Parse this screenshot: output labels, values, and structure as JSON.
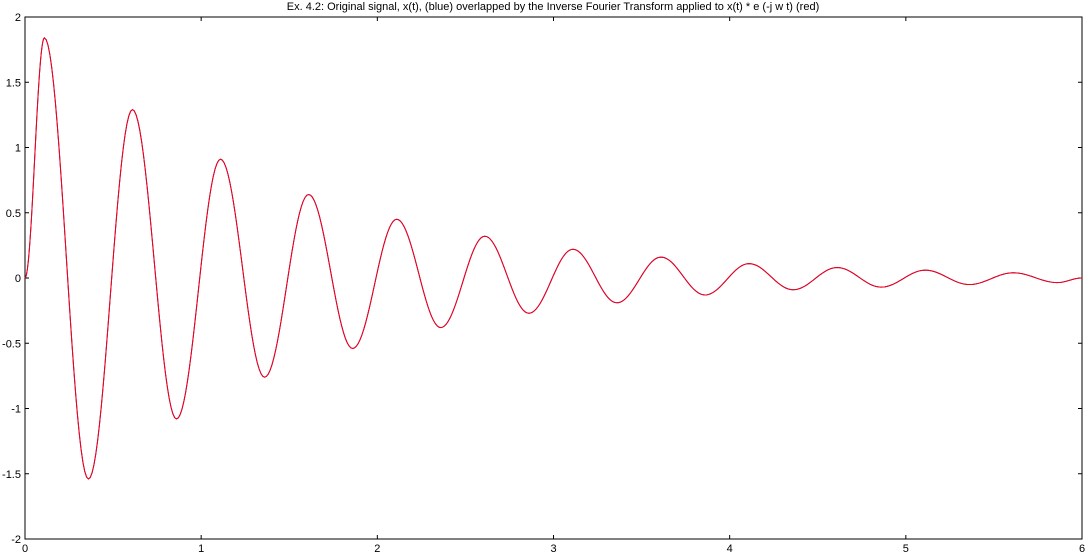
{
  "chart_data": {
    "type": "line",
    "title": "Ex. 4.2: Original signal, x(t), (blue) overlapped by the Inverse Fourier Transform applied to x(t) * e  (-j w t) (red)",
    "xlabel": "",
    "ylabel": "",
    "xlim": [
      0,
      6
    ],
    "ylim": [
      -2,
      2
    ],
    "grid": false,
    "legend": "none",
    "x_ticks": [
      0,
      1,
      2,
      3,
      4,
      5,
      6
    ],
    "y_ticks": [
      -2,
      -1.5,
      -1,
      -0.5,
      0,
      0.5,
      1,
      1.5,
      2
    ],
    "x_tick_labels": [
      "0",
      "1",
      "2",
      "3",
      "4",
      "5",
      "6"
    ],
    "y_tick_labels": [
      "-2",
      "-1.5",
      "-1",
      "-0.5",
      "0",
      "0.5",
      "1",
      "1.5",
      "2"
    ],
    "series": [
      {
        "color": "#0000ff",
        "x": [
          0,
          0.11,
          0.36,
          0.61,
          0.86,
          1.11,
          1.36,
          1.61,
          1.86,
          2.11,
          2.36,
          2.61,
          2.86,
          3.11,
          3.36,
          3.61,
          3.86,
          4.11,
          4.36,
          4.61,
          4.86,
          5.11,
          5.36,
          5.61,
          5.86,
          6
        ],
        "y": [
          0,
          1.84,
          -1.54,
          1.29,
          -1.08,
          0.91,
          -0.76,
          0.64,
          -0.54,
          0.45,
          -0.38,
          0.32,
          -0.27,
          0.22,
          -0.19,
          0.16,
          -0.13,
          0.11,
          -0.09,
          0.08,
          -0.07,
          0.06,
          -0.05,
          0.04,
          -0.035,
          0
        ]
      },
      {
        "color": "#ff0000",
        "x": [
          0,
          0.11,
          0.36,
          0.61,
          0.86,
          1.11,
          1.36,
          1.61,
          1.86,
          2.11,
          2.36,
          2.61,
          2.86,
          3.11,
          3.36,
          3.61,
          3.86,
          4.11,
          4.36,
          4.61,
          4.86,
          5.11,
          5.36,
          5.61,
          5.86,
          6
        ],
        "y": [
          0,
          1.84,
          -1.54,
          1.29,
          -1.08,
          0.91,
          -0.76,
          0.64,
          -0.54,
          0.45,
          -0.38,
          0.32,
          -0.27,
          0.22,
          -0.19,
          0.16,
          -0.13,
          0.11,
          -0.09,
          0.08,
          -0.07,
          0.06,
          -0.05,
          0.04,
          -0.035,
          0
        ]
      }
    ]
  }
}
